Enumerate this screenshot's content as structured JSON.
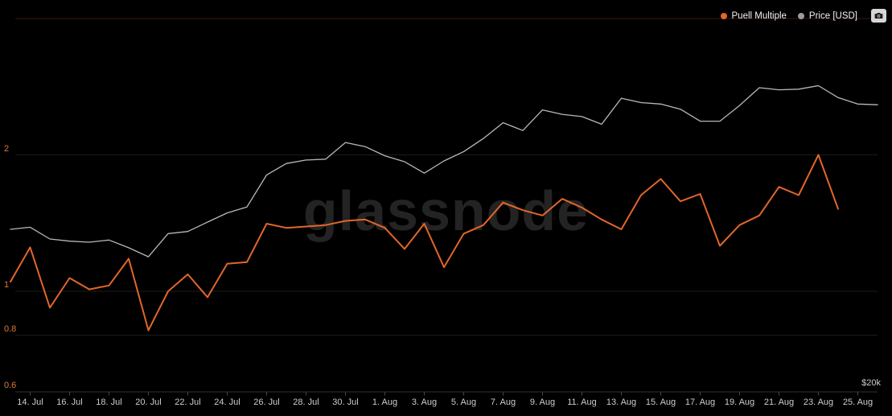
{
  "app": {
    "watermark": "glassnode"
  },
  "legend": {
    "items": [
      {
        "label": "Puell Multiple",
        "color": "#e2662a"
      },
      {
        "label": "Price [USD]",
        "color": "#9b9b9b"
      }
    ],
    "camera_button_icon": "camera-icon"
  },
  "axes": {
    "y_left": {
      "series": "Puell Multiple",
      "scale": "log",
      "tick_labels": [
        "2",
        "1",
        "0.8",
        "0.6"
      ],
      "tick_values": [
        2,
        1,
        0.8,
        0.6
      ],
      "color": "#d97a35"
    },
    "y_right": {
      "series": "Price [USD]",
      "scale": "log",
      "label": "$20k",
      "label_value_usd_k": 20,
      "color": "#c9cdd3"
    },
    "x": {
      "tick_label_rule": "every second date starting 14. Jul"
    }
  },
  "chart_data": {
    "type": "line",
    "title": "",
    "x": [
      "13. Jul",
      "14. Jul",
      "15. Jul",
      "16. Jul",
      "17. Jul",
      "18. Jul",
      "19. Jul",
      "20. Jul",
      "21. Jul",
      "22. Jul",
      "23. Jul",
      "24. Jul",
      "25. Jul",
      "26. Jul",
      "27. Jul",
      "28. Jul",
      "29. Jul",
      "30. Jul",
      "31. Jul",
      "1. Aug",
      "2. Aug",
      "3. Aug",
      "4. Aug",
      "5. Aug",
      "6. Aug",
      "7. Aug",
      "8. Aug",
      "9. Aug",
      "10. Aug",
      "11. Aug",
      "12. Aug",
      "13. Aug",
      "14. Aug",
      "15. Aug",
      "16. Aug",
      "17. Aug",
      "18. Aug",
      "19. Aug",
      "20. Aug",
      "21. Aug",
      "22. Aug",
      "23. Aug",
      "24. Aug",
      "25. Aug",
      "26. Aug"
    ],
    "series": [
      {
        "name": "Puell Multiple",
        "axis": "left",
        "color": "#e2662a",
        "values": [
          1.05,
          1.25,
          0.92,
          1.07,
          1.01,
          1.03,
          1.18,
          0.82,
          1.0,
          1.09,
          0.97,
          1.15,
          1.16,
          1.41,
          1.38,
          1.39,
          1.4,
          1.43,
          1.44,
          1.38,
          1.24,
          1.41,
          1.13,
          1.34,
          1.4,
          1.57,
          1.51,
          1.47,
          1.6,
          1.53,
          1.44,
          1.37,
          1.63,
          1.77,
          1.58,
          1.64,
          1.26,
          1.4,
          1.47,
          1.7,
          1.63,
          2.0,
          1.52,
          null,
          null
        ]
      },
      {
        "name": "Price [USD]",
        "axis": "right",
        "color": "#b8b8b8",
        "values_unit": "thousand USD",
        "values": [
          32.0,
          32.2,
          31.1,
          30.9,
          30.8,
          31.0,
          30.3,
          29.5,
          31.6,
          31.8,
          32.7,
          33.6,
          34.2,
          37.6,
          38.9,
          39.3,
          39.4,
          41.4,
          40.9,
          39.8,
          39.1,
          37.8,
          39.2,
          40.3,
          41.9,
          43.9,
          42.9,
          45.6,
          45.0,
          44.7,
          43.7,
          47.2,
          46.6,
          46.4,
          45.7,
          44.1,
          44.1,
          46.2,
          48.7,
          48.4,
          48.5,
          49.0,
          47.3,
          46.4,
          46.3
        ]
      }
    ],
    "y_left_range": [
      0.6,
      4.2
    ],
    "y_right_range_usd_k": [
      20,
      60
    ],
    "guide_line": {
      "axis": "left",
      "value": 4,
      "color": "#3b1711"
    },
    "grid": "faint horizontal lines at left-axis ticks",
    "legend_position": "top-right",
    "background": "#000000"
  }
}
